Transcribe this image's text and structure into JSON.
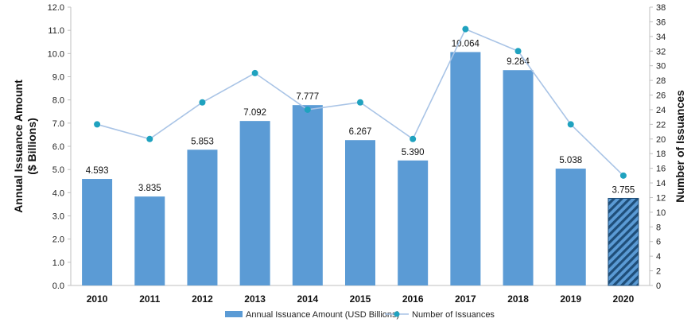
{
  "chart_data": {
    "type": "bar+line",
    "categories": [
      "2010",
      "2011",
      "2012",
      "2013",
      "2014",
      "2015",
      "2016",
      "2017",
      "2018",
      "2019",
      "2020"
    ],
    "series": [
      {
        "name": "Annual Issuance Amount (USD Billions)",
        "type": "bar",
        "axis": "left",
        "values": [
          4.593,
          3.835,
          5.853,
          7.092,
          7.777,
          6.267,
          5.39,
          10.064,
          9.284,
          5.038,
          3.755
        ],
        "labels": [
          "4.593",
          "3.835",
          "5.853",
          "7.092",
          "7.777",
          "6.267",
          "5.390",
          "10.064",
          "9.284",
          "5.038",
          "3.755"
        ],
        "color": "#5b9bd5",
        "hatched_last": true,
        "hatch_color": "#1f4e79"
      },
      {
        "name": "Number of Issuances",
        "type": "line",
        "axis": "right",
        "values": [
          22,
          20,
          25,
          29,
          24,
          25,
          20,
          35,
          32,
          22,
          15
        ],
        "color": "#a9c4e6",
        "marker_color": "#1fa2bf"
      }
    ],
    "y_left": {
      "label_line1": "Annual Issuance Amount",
      "label_line2": "($ Billions)",
      "lim": [
        0,
        12
      ],
      "ticks": [
        "0.0",
        "1.0",
        "2.0",
        "3.0",
        "4.0",
        "5.0",
        "6.0",
        "7.0",
        "8.0",
        "9.0",
        "10.0",
        "11.0",
        "12.0"
      ]
    },
    "y_right": {
      "label": "Number of Issuances",
      "lim": [
        0,
        38
      ],
      "ticks": [
        "0",
        "2",
        "4",
        "6",
        "8",
        "10",
        "12",
        "14",
        "16",
        "18",
        "20",
        "22",
        "24",
        "26",
        "28",
        "30",
        "32",
        "34",
        "36",
        "38"
      ]
    },
    "grid": false,
    "legend_position": "bottom"
  }
}
